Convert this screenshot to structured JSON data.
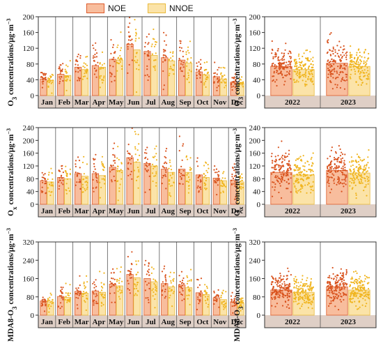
{
  "legend": {
    "noe_label": "NOE",
    "nnoe_label": "NNOE"
  },
  "colors": {
    "noe_fill": "#f8bd9d",
    "noe_edge": "#dd5a2a",
    "noe_dot": "#d9531e",
    "nnoe_fill": "#fbe3a8",
    "nnoe_edge": "#e8b93a",
    "nnoe_dot": "#f0b520",
    "category_band": "#dfcfc6"
  },
  "chart_data": [
    {
      "type": "bar",
      "title": "",
      "ylabel": "O3 concentrations/μg·m⁻³",
      "ylim": [
        0,
        200
      ],
      "yticks": [
        0,
        40,
        80,
        120,
        160,
        200
      ],
      "categories": [
        "Jan",
        "Feb",
        "Mar",
        "Apr",
        "May",
        "Jun",
        "Jul",
        "Aug",
        "Sep",
        "Oct",
        "Nov",
        "Dec"
      ],
      "series": [
        {
          "name": "NOE",
          "values": [
            42,
            54,
            72,
            76,
            92,
            130,
            112,
            96,
            90,
            60,
            48,
            34
          ]
        },
        {
          "name": "NNOE",
          "values": [
            38,
            51,
            66,
            72,
            90,
            116,
            102,
            88,
            82,
            53,
            42,
            30
          ]
        }
      ]
    },
    {
      "type": "bar",
      "title": "",
      "ylabel": "O3 concentrations/μg·m⁻³",
      "ylim": [
        0,
        200
      ],
      "yticks": [
        0,
        40,
        80,
        120,
        160,
        200
      ],
      "categories": [
        "2022",
        "2023"
      ],
      "series": [
        {
          "name": "NOE",
          "values": [
            74,
            82
          ]
        },
        {
          "name": "NNOE",
          "values": [
            66,
            74
          ]
        }
      ]
    },
    {
      "type": "bar",
      "title": "",
      "ylabel": "Ox concentrations/μg·m⁻³",
      "ylim": [
        0,
        240
      ],
      "yticks": [
        0,
        40,
        80,
        120,
        160,
        200,
        240
      ],
      "categories": [
        "Jan",
        "Feb",
        "Mar",
        "Apr",
        "May",
        "Jun",
        "Jul",
        "Aug",
        "Sep",
        "Oct",
        "Nov",
        "Dec"
      ],
      "series": [
        {
          "name": "NOE",
          "values": [
            74,
            84,
            96,
            96,
            116,
            146,
            128,
            110,
            110,
            92,
            82,
            76
          ]
        },
        {
          "name": "NNOE",
          "values": [
            70,
            80,
            88,
            90,
            106,
            132,
            120,
            100,
            100,
            84,
            74,
            70
          ]
        }
      ]
    },
    {
      "type": "bar",
      "title": "",
      "ylabel": "Ox concentrations/μg·m⁻³",
      "ylim": [
        0,
        240
      ],
      "yticks": [
        0,
        40,
        80,
        120,
        160,
        200,
        240
      ],
      "categories": [
        "2022",
        "2023"
      ],
      "series": [
        {
          "name": "NOE",
          "values": [
            100,
            106
          ]
        },
        {
          "name": "NNOE",
          "values": [
            92,
            98
          ]
        }
      ]
    },
    {
      "type": "bar",
      "title": "",
      "ylabel": "MDA8-O3 concentrations/μg·m⁻³",
      "ylim": [
        0,
        320
      ],
      "yticks": [
        0,
        80,
        160,
        240,
        320
      ],
      "categories": [
        "Jan",
        "Feb",
        "Mar",
        "Apr",
        "May",
        "Jun",
        "Jul",
        "Aug",
        "Sep",
        "Oct",
        "Nov",
        "Dec"
      ],
      "series": [
        {
          "name": "NOE",
          "values": [
            62,
            82,
            104,
            106,
            136,
            178,
            160,
            138,
            132,
            98,
            76,
            58
          ]
        },
        {
          "name": "NNOE",
          "values": [
            58,
            78,
            96,
            100,
            128,
            164,
            146,
            124,
            120,
            90,
            68,
            52
          ]
        }
      ]
    },
    {
      "type": "bar",
      "title": "",
      "ylabel": "MDA8-O3 concentrations/μg·m⁻³",
      "ylim": [
        0,
        320
      ],
      "yticks": [
        0,
        80,
        160,
        240,
        320
      ],
      "categories": [
        "2022",
        "2023"
      ],
      "series": [
        {
          "name": "NOE",
          "values": [
            110,
            124
          ]
        },
        {
          "name": "NNOE",
          "values": [
            100,
            110
          ]
        }
      ]
    }
  ]
}
